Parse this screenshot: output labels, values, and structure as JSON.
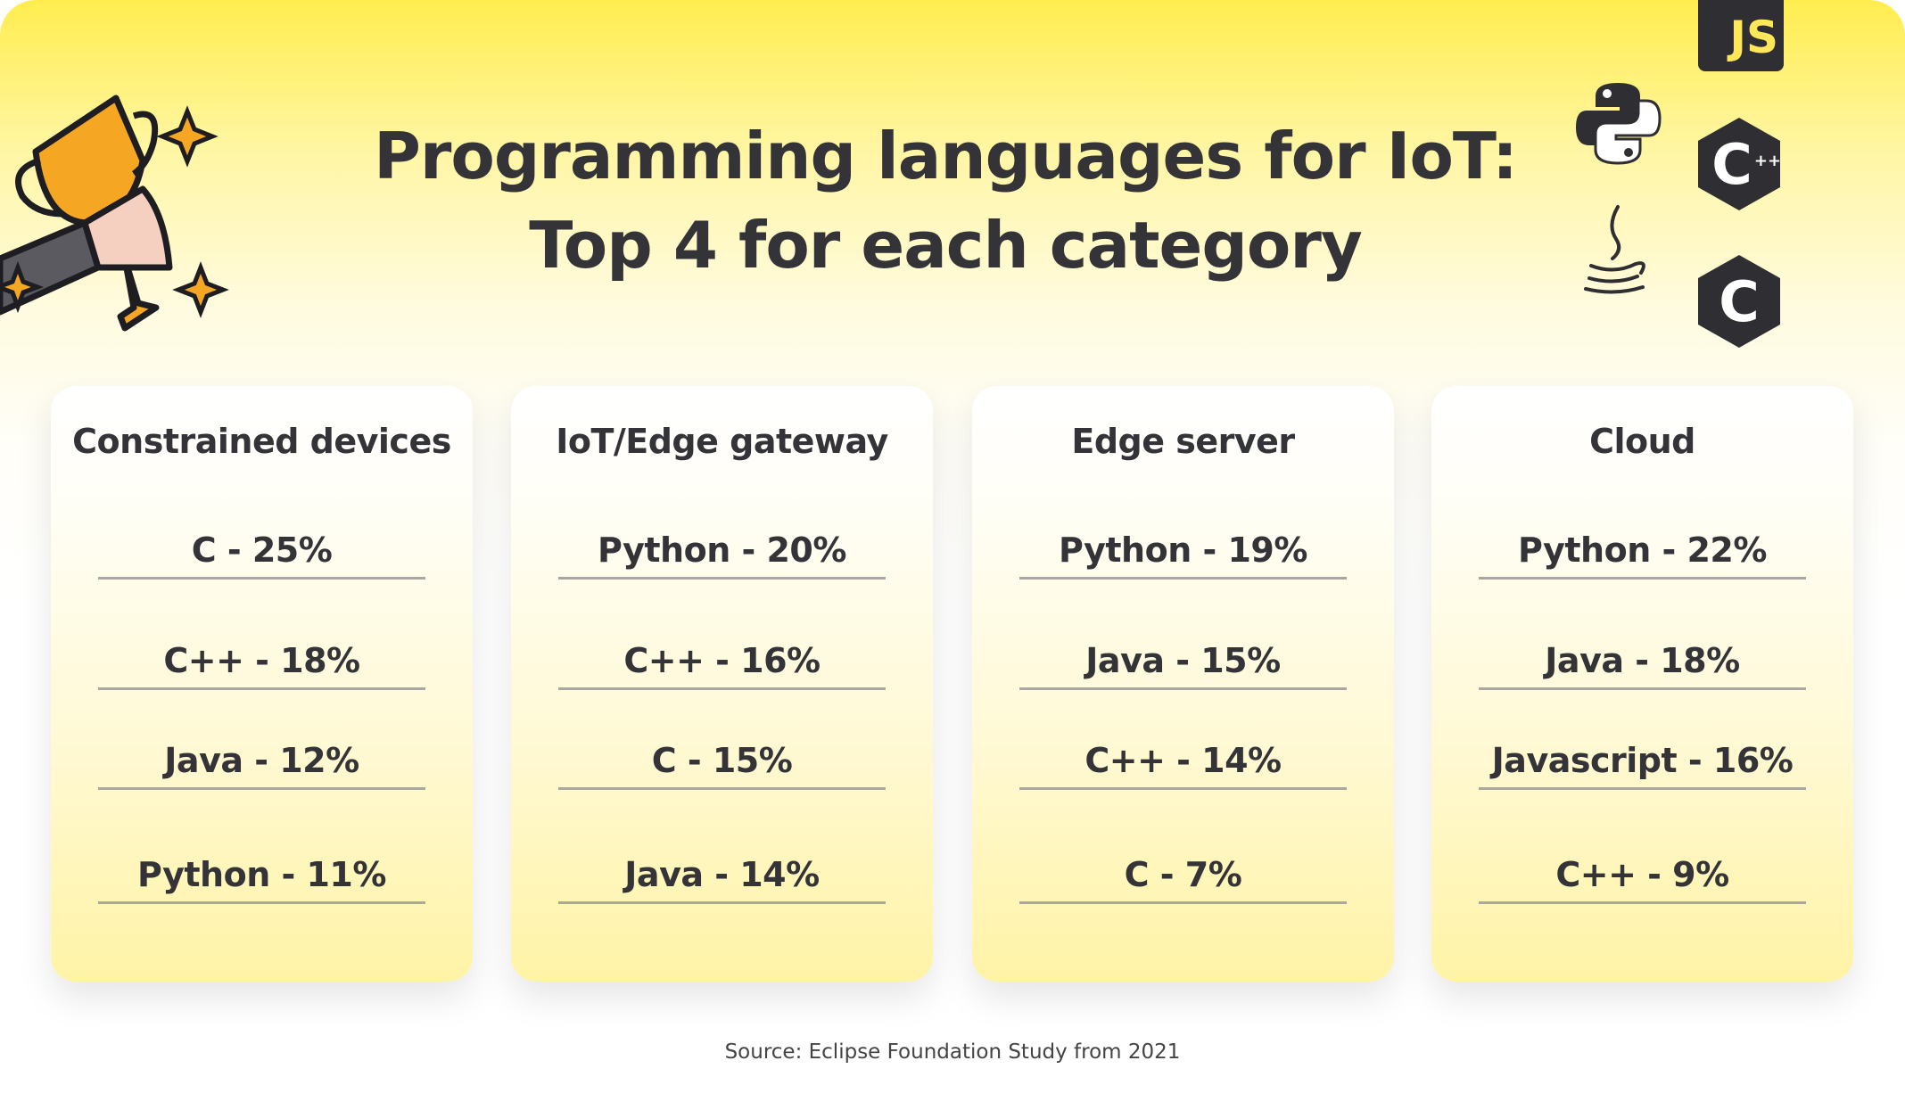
{
  "title": {
    "line1": "Programming languages for IoT:",
    "line2": "Top 4 for each category"
  },
  "categories": [
    {
      "name": "Constrained devices",
      "items": [
        "C - 25%",
        "C++ - 18%",
        "Java - 12%",
        "Python - 11%"
      ]
    },
    {
      "name": "IoT/Edge gateway",
      "items": [
        "Python - 20%",
        "C++ - 16%",
        "C - 15%",
        "Java - 14%"
      ]
    },
    {
      "name": "Edge server",
      "items": [
        "Python - 19%",
        "Java - 15%",
        "C++ - 14%",
        "C - 7%"
      ]
    },
    {
      "name": "Cloud",
      "items": [
        "Python - 22%",
        "Java - 18%",
        "Javascript - 16%",
        "C++ - 9%"
      ]
    }
  ],
  "source": "Source: Eclipse Foundation Study from 2021",
  "icons": {
    "js": "JS",
    "cpp": "C++",
    "c": "C",
    "others": [
      "trophy-icon",
      "python-icon",
      "java-icon"
    ]
  },
  "colors": {
    "accent": "#ffed4f",
    "text": "#333338",
    "icon_dark": "#2e2e33",
    "trophy": "#f5a623"
  }
}
